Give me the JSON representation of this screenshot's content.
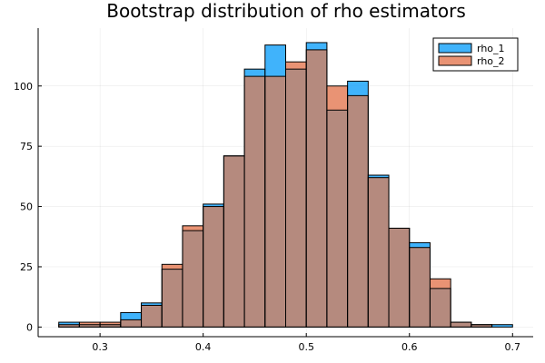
{
  "chart_data": {
    "type": "bar",
    "title": "Bootstrap distribution of rho estimators",
    "xlabel": "",
    "ylabel": "",
    "xlim": [
      0.24,
      0.72
    ],
    "ylim": [
      -4,
      124
    ],
    "bin_width": 0.02,
    "bin_edges": [
      0.26,
      0.28,
      0.3,
      0.32,
      0.34,
      0.36,
      0.38,
      0.4,
      0.42,
      0.44,
      0.46,
      0.48,
      0.5,
      0.52,
      0.54,
      0.56,
      0.58,
      0.6,
      0.62,
      0.64,
      0.66,
      0.68,
      0.7
    ],
    "x_ticks": [
      0.3,
      0.4,
      0.5,
      0.6,
      0.7
    ],
    "x_tick_labels": [
      "0.3",
      "0.4",
      "0.5",
      "0.6",
      "0.7"
    ],
    "y_ticks": [
      0,
      25,
      50,
      75,
      100
    ],
    "y_tick_labels": [
      "0",
      "25",
      "50",
      "75",
      "100"
    ],
    "grid": true,
    "legend_position": "top-right",
    "series": [
      {
        "name": "rho_1",
        "color": "#009af9",
        "values": [
          2,
          1,
          1,
          6,
          10,
          24,
          40,
          51,
          71,
          107,
          117,
          107,
          118,
          90,
          102,
          63,
          41,
          35,
          16,
          2,
          1,
          1
        ]
      },
      {
        "name": "rho_2",
        "color": "#e26f46",
        "values": [
          1,
          2,
          2,
          3,
          9,
          26,
          42,
          50,
          71,
          104,
          104,
          110,
          115,
          100,
          96,
          62,
          41,
          33,
          20,
          2,
          1,
          0
        ]
      }
    ],
    "overlap_color": "#b58a7e"
  }
}
